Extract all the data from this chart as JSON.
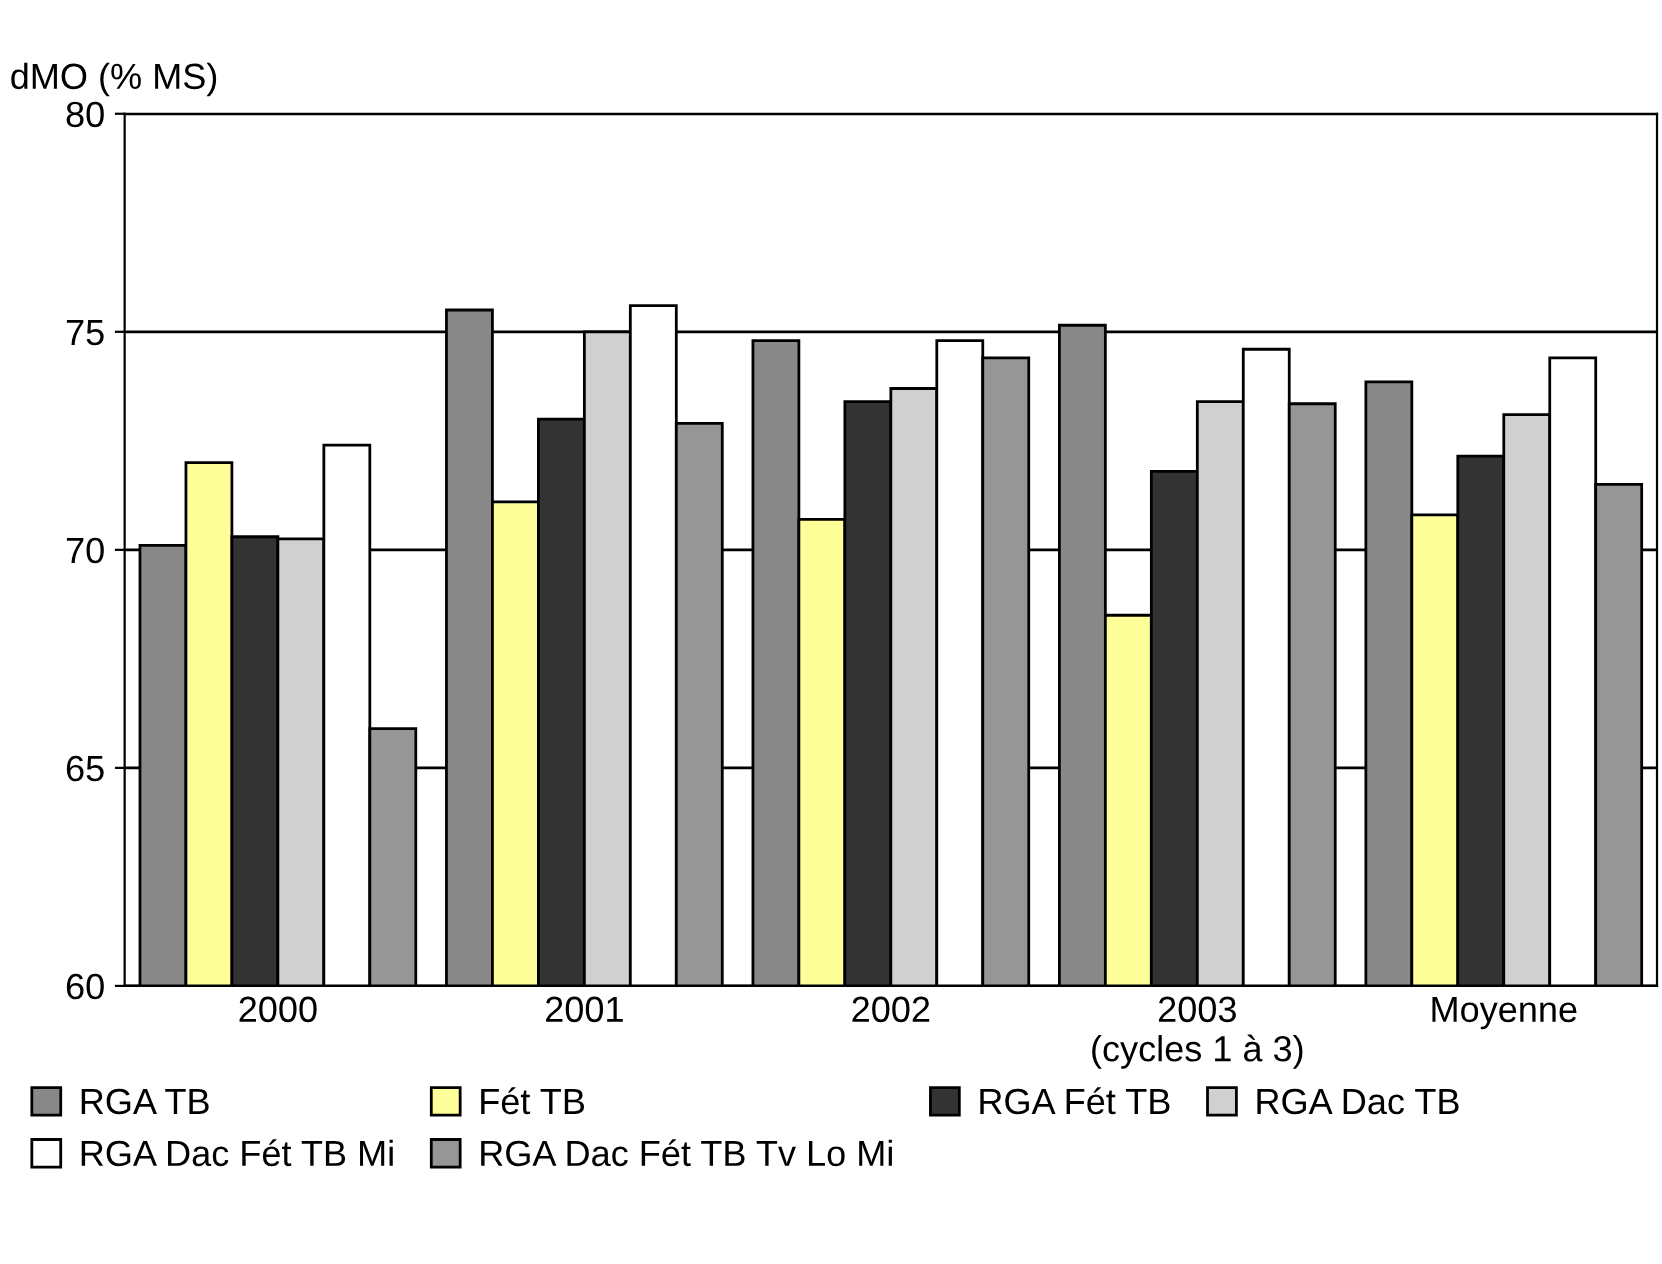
{
  "chart_data": {
    "type": "bar",
    "ylabel": "dMO (% MS)",
    "categories": [
      "2000",
      "2001",
      "2002",
      "2003\n(cycles 1 à 3)",
      "Moyenne"
    ],
    "series": [
      {
        "name": "RGA TB",
        "color": "#888888",
        "values": [
          70.1,
          75.5,
          74.8,
          75.15,
          73.85
        ]
      },
      {
        "name": "Fét TB",
        "color": "#ffff99",
        "values": [
          72.0,
          71.1,
          70.7,
          68.5,
          70.8
        ]
      },
      {
        "name": "RGA Fét TB",
        "color": "#333333",
        "values": [
          70.3,
          73.0,
          73.4,
          71.8,
          72.15
        ]
      },
      {
        "name": "RGA Dac TB",
        "color": "#d0d0d0",
        "values": [
          70.25,
          75.0,
          73.7,
          73.4,
          73.1
        ]
      },
      {
        "name": "RGA Dac Fét TB Mi",
        "color": "#ffffff",
        "values": [
          72.4,
          75.6,
          74.8,
          74.6,
          74.4
        ]
      },
      {
        "name": "RGA Dac Fét TB Tv Lo Mi",
        "color": "#969696",
        "values": [
          65.9,
          72.9,
          74.4,
          73.35,
          71.5
        ]
      }
    ],
    "ylim": [
      60,
      80
    ],
    "yticks": [
      60,
      65,
      70,
      75,
      80
    ],
    "grid": "y",
    "legend": "bottom"
  }
}
